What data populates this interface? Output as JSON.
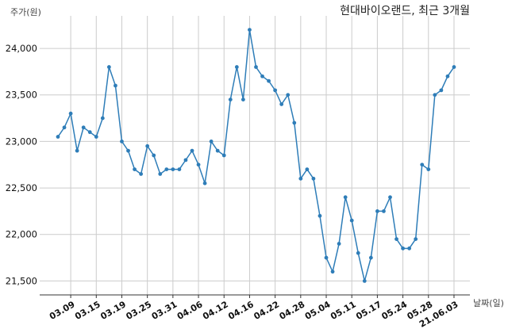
{
  "chart_data": {
    "type": "line",
    "title": "현대바이오랜드, 최근 3개월",
    "ylabel": "주가(원)",
    "xlabel": "날짜(일)",
    "ylim": [
      21350,
      24350
    ],
    "yticks": [
      21500,
      22000,
      22500,
      23000,
      23500,
      24000
    ],
    "ytick_labels": [
      "21,500",
      "22,000",
      "22,500",
      "23,000",
      "23,500",
      "24,000"
    ],
    "xtick_labels": [
      "03.09",
      "03.15",
      "03.19",
      "03.25",
      "03.31",
      "04.06",
      "04.12",
      "04.16",
      "04.22",
      "04.28",
      "05.04",
      "05.11",
      "05.17",
      "05.24",
      "05.28",
      "21.06.03"
    ],
    "xtick_index": [
      2,
      6,
      10,
      14,
      18,
      22,
      26,
      30,
      34,
      38,
      42,
      46,
      50,
      54,
      58,
      62
    ],
    "grid": true,
    "color": "#2e7db8",
    "series": [
      {
        "values": [
          23050,
          23150,
          23300,
          22900,
          23150,
          23100,
          23050,
          23250,
          23800,
          23600,
          23000,
          22900,
          22700,
          22650,
          22950,
          22850,
          22650,
          22700,
          22700,
          22700,
          22800,
          22900,
          22750,
          22550,
          23000,
          22900,
          22850,
          23450,
          23800,
          23450,
          24200,
          23800,
          23700,
          23650,
          23550,
          23400,
          23500,
          23200,
          22600,
          22700,
          22600,
          22200,
          21750,
          21600,
          21900,
          22400,
          22150,
          21800,
          21500,
          21750,
          22250,
          22250,
          22400,
          21950,
          21850,
          21850,
          21950,
          22750,
          22700,
          23500,
          23550,
          23700,
          23800
        ]
      }
    ]
  }
}
